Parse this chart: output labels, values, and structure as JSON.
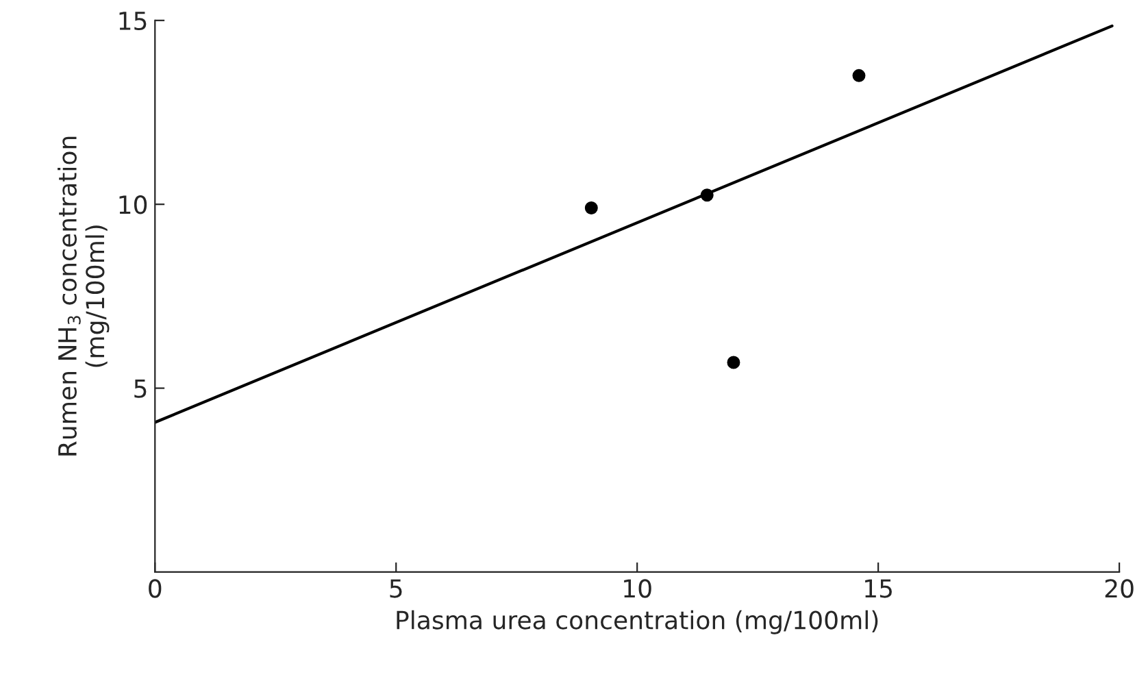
{
  "chart_data": {
    "type": "scatter",
    "xlabel": "Plasma urea concentration (mg/100ml)",
    "ylabel": "Rumen NH$_{3}$ concentration\n(mg/100ml)",
    "x": [
      9.05,
      11.45,
      12.0,
      14.6
    ],
    "series": [
      {
        "color": "#000000",
        "marker": "circle",
        "values": [
          9.9,
          10.25,
          5.7,
          13.5
        ]
      },
      {
        "type": "line",
        "color": "#000000",
        "marker": "none",
        "x": [
          0,
          19.85
        ],
        "values": [
          4.07,
          14.85
        ]
      }
    ],
    "xlim": [
      0,
      20
    ],
    "ylim": [
      0,
      15
    ],
    "xticks": [
      0,
      5,
      10,
      15,
      20
    ],
    "yticks": [
      5,
      10,
      15
    ],
    "grid": false,
    "legend": false
  }
}
